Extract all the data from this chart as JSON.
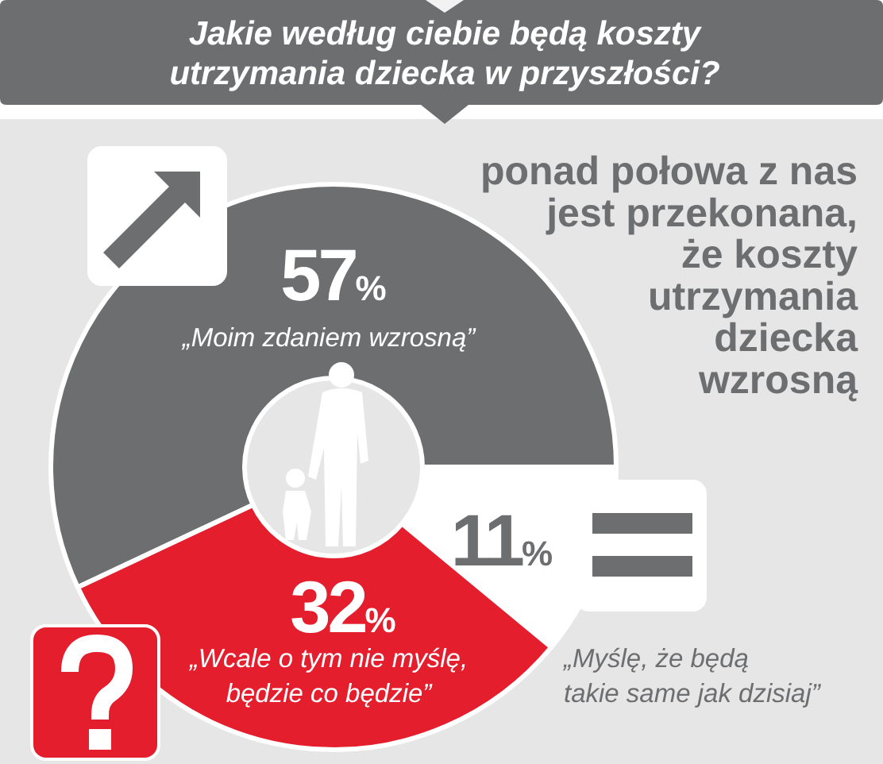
{
  "chart_data": {
    "type": "donut",
    "title": "Jakie według ciebie będą koszty\nutrzymania dziecka w przyszłości?",
    "categories": [
      "„Moim zdaniem wzrosną”",
      "„Myślę, że będą\ntakie same jak dzisiaj”",
      "„Wcale o tym nie myślę,\nbędzie co będzie”"
    ],
    "values": [
      57,
      11,
      32
    ],
    "colors": [
      "#6d6e70",
      "#ffffff",
      "#e41e2d"
    ],
    "value_labels": [
      "57%",
      "11%",
      "32%"
    ],
    "annotations": [
      "ponad połowa z nas\njest przekonana,\nże koszty\nutrzymania\ndziecka\nwzrosną"
    ]
  }
}
